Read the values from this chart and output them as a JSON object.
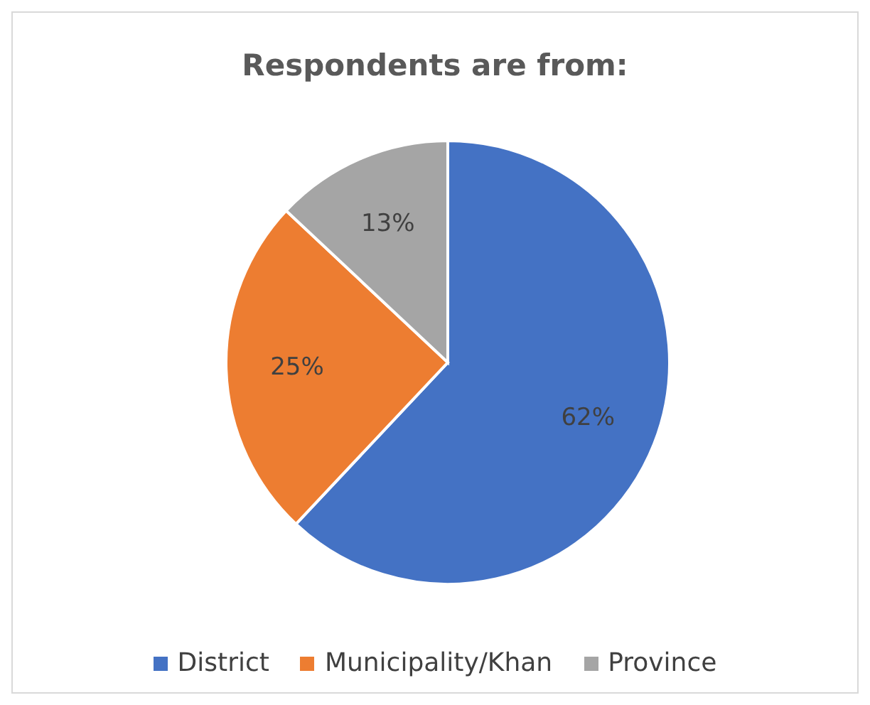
{
  "chart_data": {
    "type": "pie",
    "title": "Respondents are from:",
    "categories": [
      "District",
      "Municipality/Khan",
      "Province"
    ],
    "values": [
      62,
      25,
      13
    ],
    "colors": [
      "#4472c4",
      "#ed7d31",
      "#a5a5a5"
    ],
    "value_labels": [
      "62%",
      "25%",
      "13%"
    ],
    "legend": "bottom"
  }
}
